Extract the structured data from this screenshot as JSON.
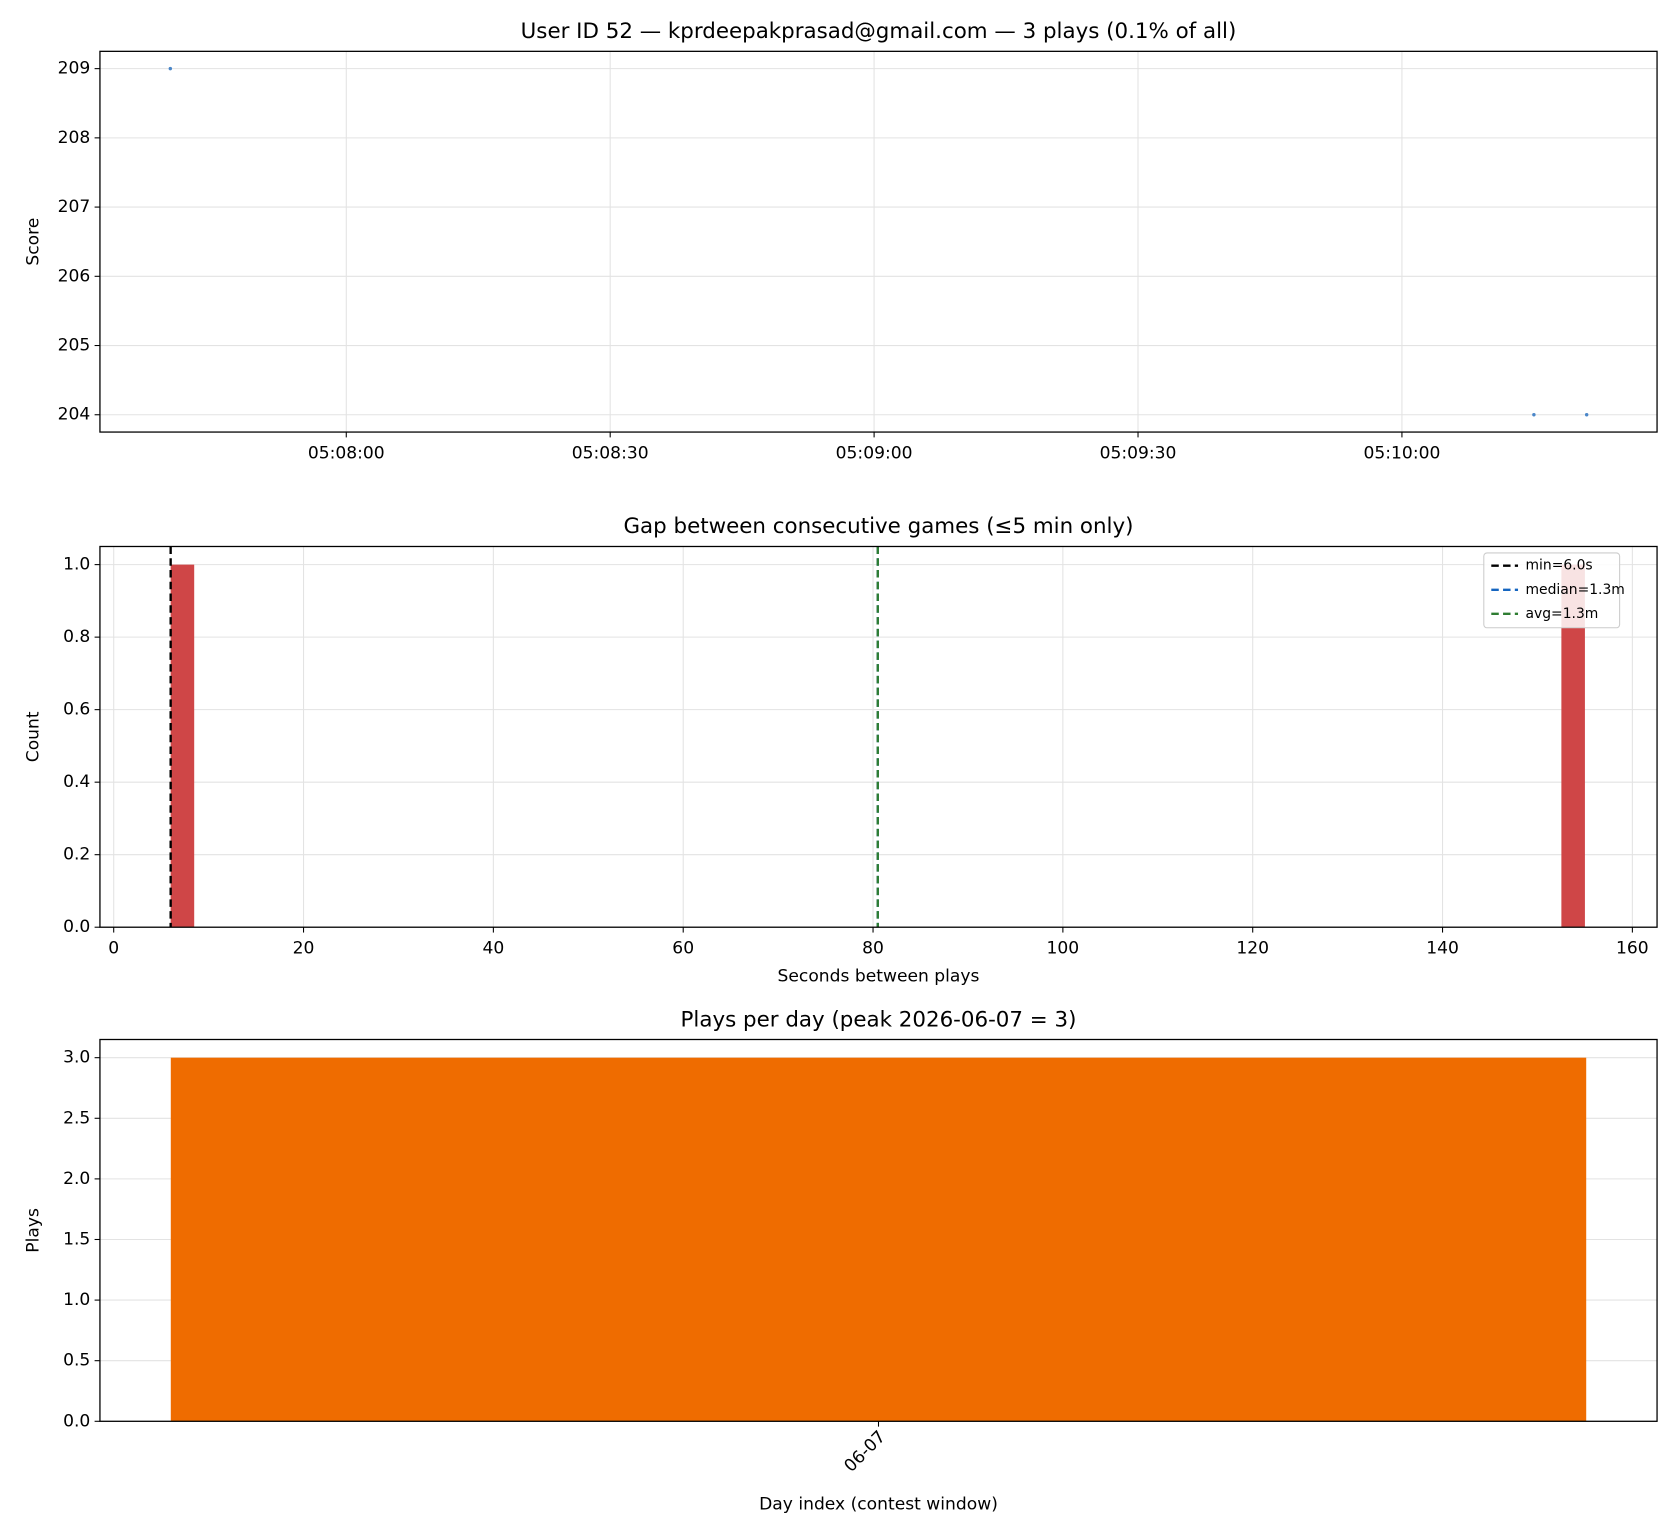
{
  "chart_data": [
    {
      "type": "scatter",
      "title": "User ID 52 — kprdeepakprasad@gmail.com — 3 plays (0.1% of all)",
      "ylabel": "Score",
      "x": [
        "05:07:40",
        "05:10:15",
        "05:10:21"
      ],
      "values": [
        209,
        204,
        204
      ],
      "color": "#4a86c8",
      "xlim": [
        "05:07:32",
        "05:10:29"
      ],
      "xticks": [
        "05:08:00",
        "05:08:30",
        "05:09:00",
        "05:09:30",
        "05:10:00"
      ],
      "ylim": [
        203.75,
        209.25
      ],
      "yticks": [
        204,
        205,
        206,
        207,
        208,
        209
      ],
      "grid": true
    },
    {
      "type": "histogram",
      "title": "Gap between consecutive games (≤5 min only)",
      "xlabel": "Seconds between plays",
      "ylabel": "Count",
      "bins": [
        6,
        8.48,
        10.97,
        13.45,
        15.93,
        18.42,
        20.9,
        23.38,
        25.87,
        28.35,
        30.83,
        33.32,
        35.8,
        38.28,
        40.77,
        43.25,
        45.73,
        48.22,
        50.7,
        53.18,
        55.67,
        58.15,
        60.63,
        63.12,
        65.6,
        68.08,
        70.57,
        73.05,
        75.53,
        78.02,
        80.5,
        82.98,
        85.47,
        87.95,
        90.43,
        92.92,
        95.4,
        97.88,
        100.37,
        102.85,
        105.33,
        107.82,
        110.3,
        112.78,
        115.27,
        117.75,
        120.23,
        122.72,
        125.2,
        127.68,
        130.17,
        132.65,
        135.13,
        137.62,
        140.1,
        142.58,
        145.07,
        147.55,
        150.03,
        152.52,
        155
      ],
      "values": [
        1,
        0,
        0,
        0,
        0,
        0,
        0,
        0,
        0,
        0,
        0,
        0,
        0,
        0,
        0,
        0,
        0,
        0,
        0,
        0,
        0,
        0,
        0,
        0,
        0,
        0,
        0,
        0,
        0,
        0,
        0,
        0,
        0,
        0,
        0,
        0,
        0,
        0,
        0,
        0,
        0,
        0,
        0,
        0,
        0,
        0,
        0,
        0,
        0,
        0,
        0,
        0,
        0,
        0,
        0,
        0,
        0,
        0,
        0,
        1
      ],
      "color": "#cf4647",
      "lines": [
        {
          "label": "min=6.0s",
          "value": 6,
          "color": "#000000"
        },
        {
          "label": "median=1.3m",
          "value": 80.5,
          "color": "#1565c0"
        },
        {
          "label": "avg=1.3m",
          "value": 80.5,
          "color": "#2e7d32"
        }
      ],
      "legend": "upper right",
      "xlim": [
        -1.45,
        162.6
      ],
      "xticks": [
        0,
        20,
        40,
        60,
        80,
        100,
        120,
        140,
        160
      ],
      "ylim": [
        0,
        1.05
      ],
      "yticks": [
        {
          "value": 0,
          "label": "0.0"
        },
        0.2,
        0.4,
        0.6,
        0.8,
        {
          "value": 1,
          "label": "1.0"
        }
      ],
      "grid": true
    },
    {
      "type": "bar",
      "title": "Plays per day (peak 2026-06-07 = 3)",
      "xlabel": "Day index (contest window)",
      "ylabel": "Plays",
      "categories": [
        "06-07"
      ],
      "values": [
        3
      ],
      "color": "#ef6c00",
      "ylim": [
        0,
        3.15
      ],
      "yticks": [
        {
          "value": 0,
          "label": "0.0"
        },
        0.5,
        {
          "value": 1,
          "label": "1.0"
        },
        1.5,
        {
          "value": 2,
          "label": "2.0"
        },
        2.5,
        {
          "value": 3,
          "label": "3.0"
        }
      ],
      "grid": true
    }
  ]
}
